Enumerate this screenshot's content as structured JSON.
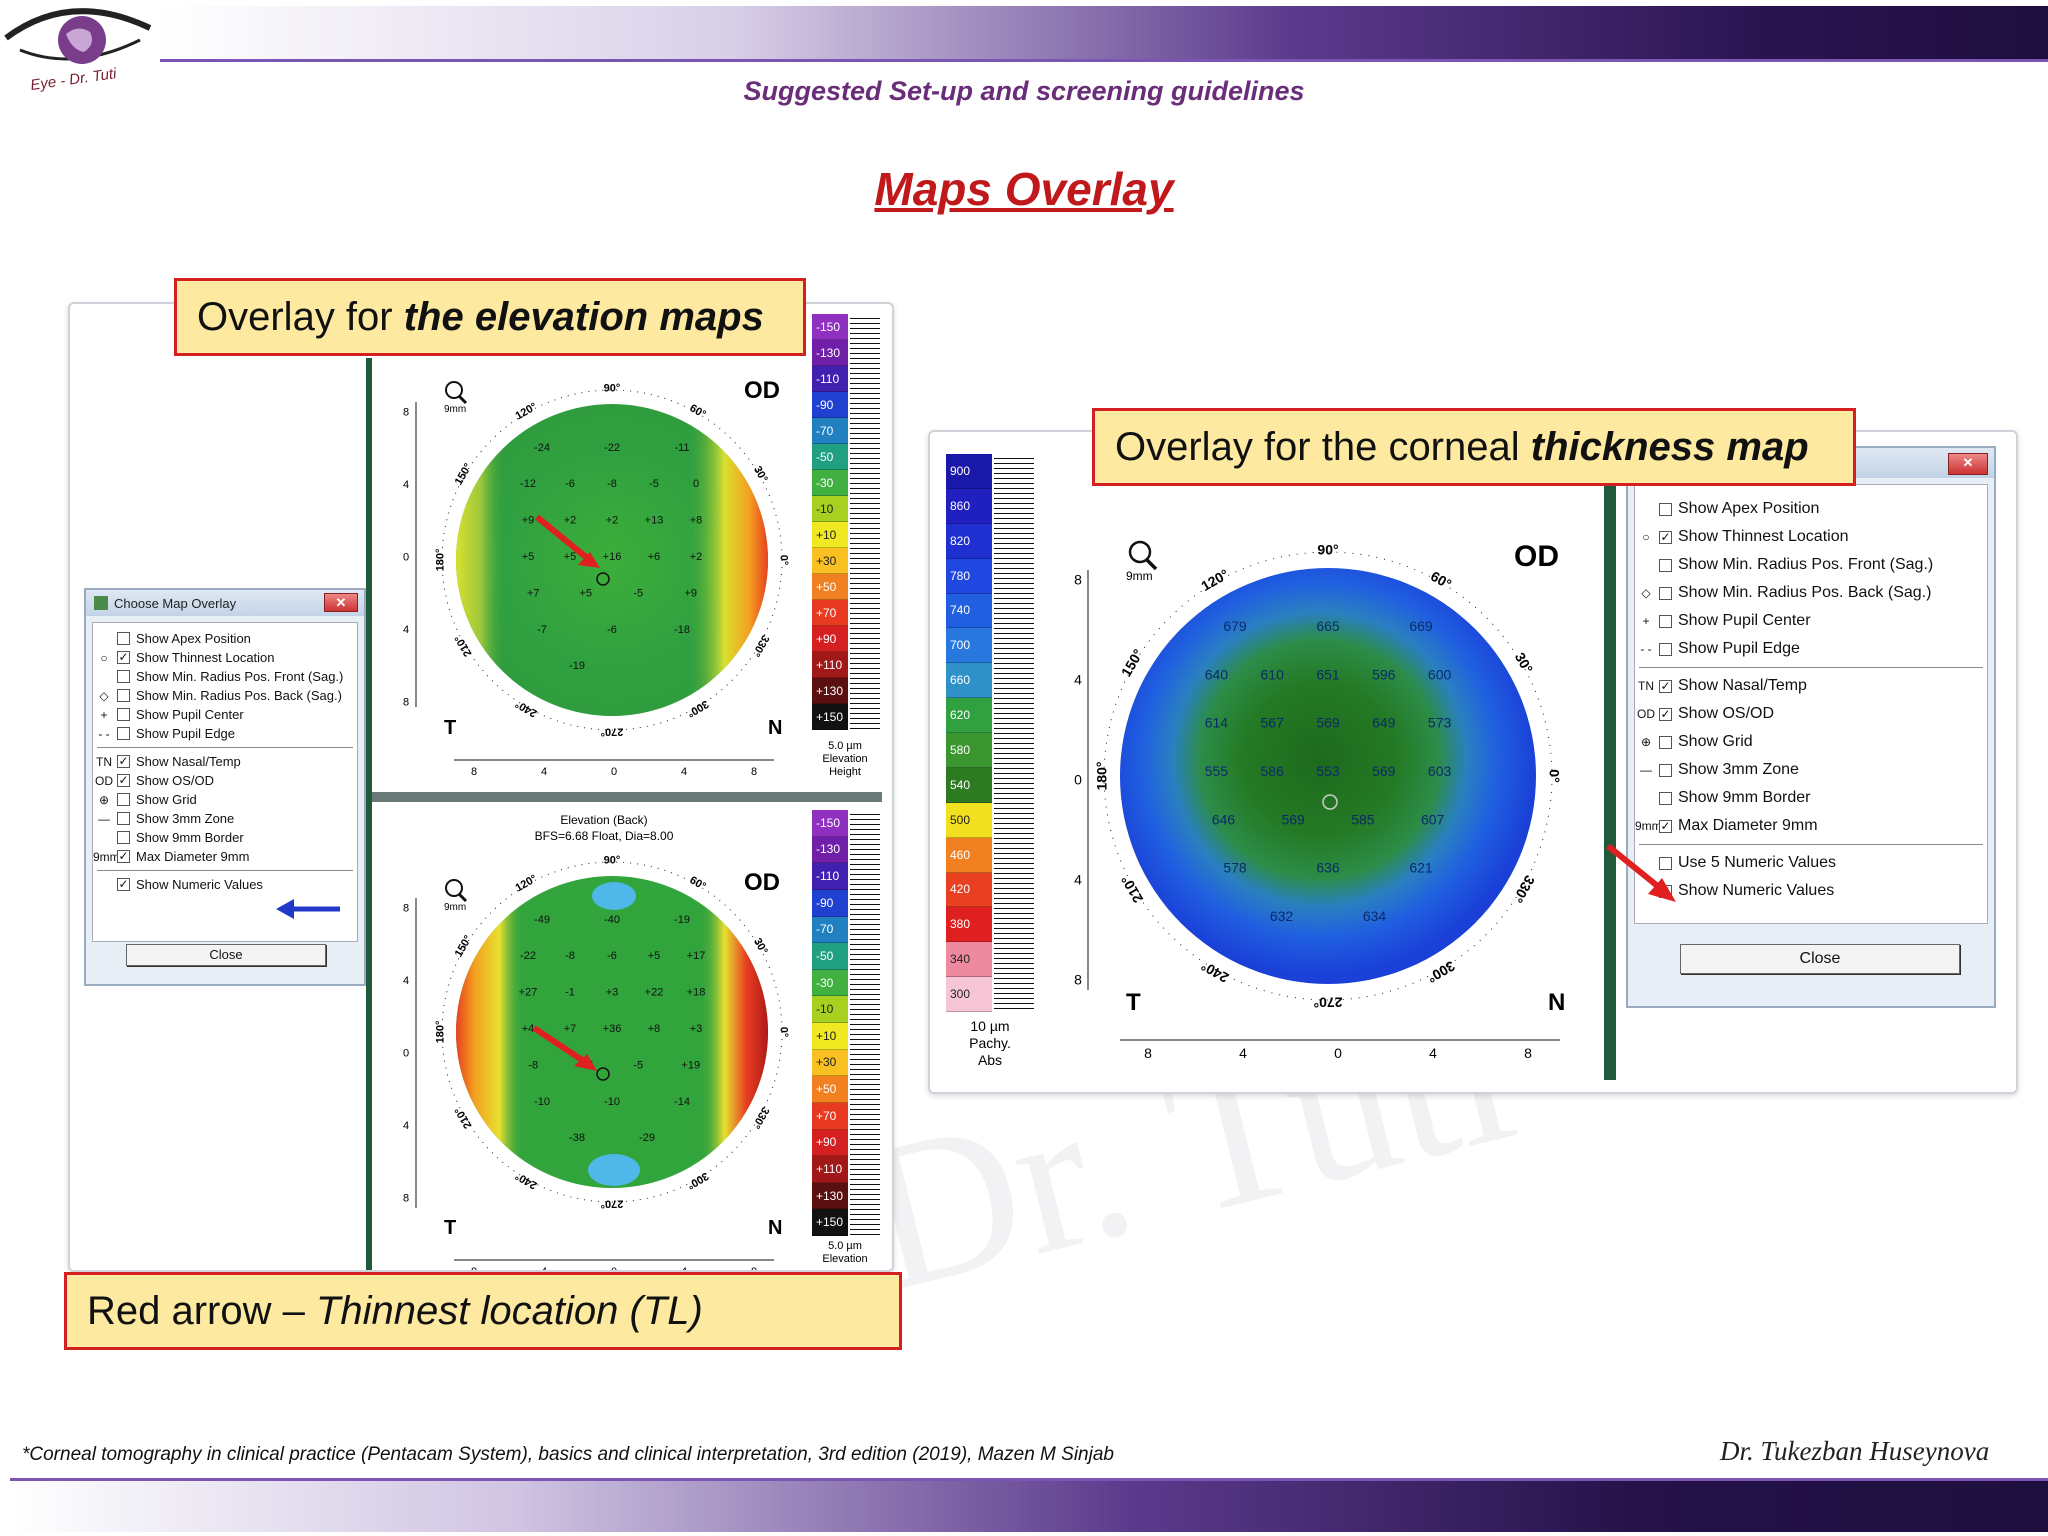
{
  "header": {
    "logo_text": "Eye - Dr. Tuti",
    "subtitle": "Suggested Set-up and screening guidelines",
    "title": "Maps Overlay"
  },
  "watermark": "Dr. Tuti",
  "callouts": {
    "elevation": {
      "prefix": "Overlay for ",
      "emph": "the elevation maps"
    },
    "thickness": {
      "prefix": "Overlay for the corneal ",
      "emph": "thickness map"
    },
    "arrow": {
      "prefix": "Red arrow – ",
      "emph": "Thinnest location (TL)"
    }
  },
  "left_dialog": {
    "title": "Choose Map Overlay",
    "options": [
      {
        "icon": "",
        "label": "Show Apex Position",
        "checked": false
      },
      {
        "icon": "○",
        "label": "Show Thinnest Location",
        "checked": true
      },
      {
        "icon": "",
        "label": "Show Min. Radius Pos. Front (Sag.)",
        "checked": false
      },
      {
        "icon": "◇",
        "label": "Show Min. Radius Pos. Back (Sag.)",
        "checked": false
      },
      {
        "icon": "+",
        "label": "Show Pupil Center",
        "checked": false
      },
      {
        "icon": "- -",
        "label": "Show Pupil Edge",
        "checked": false
      },
      {
        "icon": "TN",
        "label": "Show Nasal/Temp",
        "checked": true
      },
      {
        "icon": "OD",
        "label": "Show OS/OD",
        "checked": true
      },
      {
        "icon": "⊕",
        "label": "Show Grid",
        "checked": false
      },
      {
        "icon": "—",
        "label": "Show 3mm Zone",
        "checked": false
      },
      {
        "icon": "",
        "label": "Show 9mm Border",
        "checked": false
      },
      {
        "icon": "9mm",
        "label": "Max Diameter 9mm",
        "checked": true
      },
      {
        "icon": "",
        "label": "Show Numeric Values",
        "checked": true
      }
    ],
    "close_label": "Close"
  },
  "right_dialog": {
    "options": [
      {
        "icon": "",
        "label": "Show Apex Position",
        "checked": false
      },
      {
        "icon": "○",
        "label": "Show Thinnest Location",
        "checked": true
      },
      {
        "icon": "",
        "label": "Show Min. Radius Pos. Front (Sag.)",
        "checked": false
      },
      {
        "icon": "◇",
        "label": "Show Min. Radius Pos. Back (Sag.)",
        "checked": false
      },
      {
        "icon": "+",
        "label": "Show Pupil Center",
        "checked": false
      },
      {
        "icon": "- -",
        "label": "Show Pupil Edge",
        "checked": false
      },
      {
        "icon": "TN",
        "label": "Show Nasal/Temp",
        "checked": true
      },
      {
        "icon": "OD",
        "label": "Show OS/OD",
        "checked": true
      },
      {
        "icon": "⊕",
        "label": "Show Grid",
        "checked": false
      },
      {
        "icon": "—",
        "label": "Show 3mm Zone",
        "checked": false
      },
      {
        "icon": "",
        "label": "Show 9mm Border",
        "checked": false
      },
      {
        "icon": "9mm",
        "label": "Max Diameter 9mm",
        "checked": true
      },
      {
        "icon": "",
        "label": "Use 5 Numeric Values",
        "checked": false
      },
      {
        "icon": "",
        "label": "Show Numeric Values",
        "checked": true
      }
    ],
    "close_label": "Close"
  },
  "elevation_scale": {
    "values": [
      "+150",
      "+130",
      "+110",
      "+90",
      "+70",
      "+50",
      "+30",
      "+10",
      "-10",
      "-30",
      "-50",
      "-70",
      "-90",
      "-110",
      "-130",
      "-150"
    ],
    "colors": [
      "#111111",
      "#5a1010",
      "#a01818",
      "#d42020",
      "#e83a20",
      "#f08020",
      "#f8c020",
      "#f0e820",
      "#a8d020",
      "#40b040",
      "#20a080",
      "#2080c0",
      "#2040d0",
      "#4020b0",
      "#7020a8",
      "#9030c0"
    ],
    "unit_top": "5.0 µm",
    "unit_mid": "Elevation",
    "unit_bot": "Height"
  },
  "pachy_scale": {
    "values": [
      "300",
      "340",
      "380",
      "420",
      "460",
      "500",
      "540",
      "580",
      "620",
      "660",
      "700",
      "740",
      "780",
      "820",
      "860",
      "900"
    ],
    "colors": [
      "#f6c6d6",
      "#ee8aa0",
      "#e02020",
      "#e84020",
      "#f08020",
      "#f0e020",
      "#2e7a20",
      "#3c9630",
      "#30a040",
      "#3090c8",
      "#2878e0",
      "#2060e0",
      "#2048e0",
      "#2030d0",
      "#2020c0",
      "#1a18a8"
    ],
    "unit_top": "10 µm",
    "unit_mid": "Pachy.",
    "unit_bot": "Abs"
  },
  "elevation_front": {
    "eye": "OD",
    "temporal": "T",
    "nasal": "N",
    "zoom": "9mm",
    "angles": [
      "90°",
      "60°",
      "30°",
      "0°",
      "330°",
      "300°",
      "270°",
      "240°",
      "210°",
      "180°",
      "150°",
      "120°"
    ],
    "axis_ticks": [
      "8",
      "4",
      "0",
      "4",
      "8"
    ],
    "values": [
      "-24",
      "-22",
      "-11",
      "-12",
      "-6",
      "-8",
      "-5",
      "0",
      "+9",
      "+2",
      "+2",
      "+13",
      "+8",
      "+5",
      "+5",
      "+16",
      "+6",
      "+2",
      "+7",
      "+5",
      "-5",
      "+9",
      "-7",
      "-6",
      "-18",
      "-19"
    ]
  },
  "elevation_back": {
    "caption1": "Elevation (Back)",
    "caption2": "BFS=6.68 Float, Dia=8.00",
    "eye": "OD",
    "temporal": "T",
    "nasal": "N",
    "zoom": "9mm",
    "angles": [
      "90°",
      "60°",
      "30°",
      "0°",
      "330°",
      "300°",
      "270°",
      "240°",
      "210°",
      "180°",
      "150°",
      "120°"
    ],
    "axis_ticks": [
      "8",
      "4",
      "0",
      "4",
      "8"
    ],
    "values": [
      "-49",
      "-40",
      "-19",
      "-22",
      "-8",
      "-6",
      "+5",
      "+17",
      "+27",
      "-1",
      "+3",
      "+22",
      "+18",
      "+4",
      "+7",
      "+36",
      "+8",
      "+3",
      "-8",
      "+11",
      "-5",
      "+19",
      "-10",
      "-10",
      "-14",
      "-38",
      "-29"
    ]
  },
  "pachy_map": {
    "eye": "OD",
    "temporal": "T",
    "nasal": "N",
    "zoom": "9mm",
    "angles": [
      "90°",
      "60°",
      "30°",
      "0°",
      "330°",
      "300°",
      "270°",
      "240°",
      "210°",
      "180°",
      "150°",
      "120°"
    ],
    "axis_ticks": [
      "8",
      "4",
      "0",
      "4",
      "8"
    ],
    "values": [
      "679",
      "665",
      "669",
      "640",
      "610",
      "651",
      "596",
      "600",
      "614",
      "567",
      "569",
      "649",
      "573",
      "555",
      "586",
      "553",
      "569",
      "603",
      "646",
      "569",
      "585",
      "607",
      "578",
      "636",
      "621",
      "632",
      "634"
    ]
  },
  "footer": {
    "reference": "*Corneal tomography in clinical practice (Pentacam System), basics and clinical interpretation, 3rd edition (2019), Mazen M Sinjab",
    "author": "Dr. Tukezban Huseynova"
  }
}
